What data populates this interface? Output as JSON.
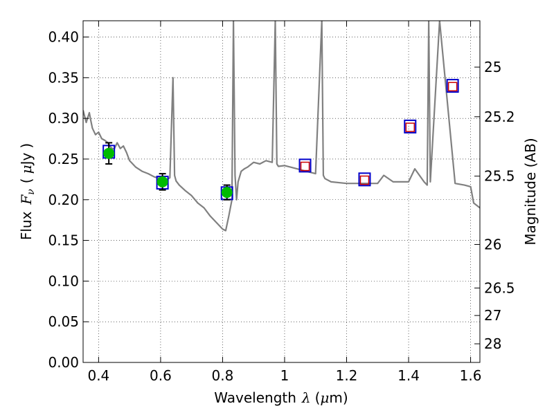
{
  "chart_data": {
    "type": "scatter",
    "title": "",
    "xlabel": "Wavelength",
    "xlabel_symbol": "λ",
    "xlabel_unit_open": "(",
    "xlabel_unit_mu": "μ",
    "xlabel_unit_rest": "m)",
    "ylabel": "Flux",
    "ylabel_symbol": "F",
    "ylabel_subscript": "ν",
    "ylabel_unit_open": "(",
    "ylabel_unit_mu": "μ",
    "ylabel_unit_rest": "Jy",
    "ylabel_unit_close": ")",
    "y2label": "Magnitude (AB)",
    "xlim": [
      0.35,
      1.63
    ],
    "ylim": [
      0.0,
      0.42
    ],
    "grid": true,
    "grid_style": "dotted",
    "xticks": [
      {
        "value": 0.4,
        "label": "0.4"
      },
      {
        "value": 0.6,
        "label": "0.6"
      },
      {
        "value": 0.8,
        "label": "0.8"
      },
      {
        "value": 1.0,
        "label": "1"
      },
      {
        "value": 1.2,
        "label": "1.2"
      },
      {
        "value": 1.4,
        "label": "1.4"
      },
      {
        "value": 1.6,
        "label": "1.6"
      }
    ],
    "yticks": [
      {
        "value": 0.0,
        "label": "0.00"
      },
      {
        "value": 0.05,
        "label": "0.05"
      },
      {
        "value": 0.1,
        "label": "0.10"
      },
      {
        "value": 0.15,
        "label": "0.15"
      },
      {
        "value": 0.2,
        "label": "0.20"
      },
      {
        "value": 0.25,
        "label": "0.25"
      },
      {
        "value": 0.3,
        "label": "0.30"
      },
      {
        "value": 0.35,
        "label": "0.35"
      },
      {
        "value": 0.4,
        "label": "0.40"
      }
    ],
    "mag_ticks": [
      {
        "flux": 0.363,
        "label": "25"
      },
      {
        "flux": 0.302,
        "label": "25.2"
      },
      {
        "flux": 0.229,
        "label": "25.5"
      },
      {
        "flux": 0.145,
        "label": "26"
      },
      {
        "flux": 0.0915,
        "label": "26.5"
      },
      {
        "flux": 0.0577,
        "label": "27"
      },
      {
        "flux": 0.0229,
        "label": "28"
      }
    ],
    "colors": {
      "model": "#808080",
      "observed": "#00bb00",
      "errorbar": "#000000",
      "model_box": "#0000cc",
      "upper_box": "#cc0000"
    },
    "series": [
      {
        "kind": "model_spectrum",
        "x": [
          0.35,
          0.36,
          0.37,
          0.375,
          0.38,
          0.39,
          0.4,
          0.41,
          0.42,
          0.43,
          0.44,
          0.45,
          0.46,
          0.47,
          0.48,
          0.49,
          0.5,
          0.52,
          0.54,
          0.56,
          0.58,
          0.6,
          0.62,
          0.63,
          0.64,
          0.645,
          0.65,
          0.66,
          0.68,
          0.7,
          0.72,
          0.74,
          0.76,
          0.78,
          0.8,
          0.81,
          0.82,
          0.83,
          0.835,
          0.84,
          0.845,
          0.85,
          0.86,
          0.87,
          0.88,
          0.9,
          0.92,
          0.94,
          0.96,
          0.97,
          0.975,
          0.98,
          1.0,
          1.02,
          1.04,
          1.06,
          1.08,
          1.1,
          1.12,
          1.125,
          1.13,
          1.15,
          1.2,
          1.25,
          1.3,
          1.32,
          1.35,
          1.4,
          1.42,
          1.45,
          1.46,
          1.465,
          1.47,
          1.5,
          1.55,
          1.58,
          1.6,
          1.61,
          1.63
        ],
        "y": [
          0.31,
          0.295,
          0.307,
          0.297,
          0.288,
          0.28,
          0.283,
          0.275,
          0.273,
          0.27,
          0.264,
          0.262,
          0.27,
          0.263,
          0.266,
          0.258,
          0.248,
          0.24,
          0.235,
          0.232,
          0.228,
          0.226,
          0.225,
          0.227,
          0.35,
          0.23,
          0.223,
          0.218,
          0.211,
          0.205,
          0.196,
          0.19,
          0.18,
          0.172,
          0.164,
          0.162,
          0.18,
          0.2,
          0.42,
          0.23,
          0.2,
          0.222,
          0.235,
          0.238,
          0.24,
          0.246,
          0.244,
          0.248,
          0.246,
          0.42,
          0.244,
          0.241,
          0.242,
          0.24,
          0.238,
          0.236,
          0.234,
          0.232,
          0.42,
          0.23,
          0.226,
          0.222,
          0.22,
          0.22,
          0.22,
          0.23,
          0.222,
          0.222,
          0.238,
          0.222,
          0.218,
          0.42,
          0.222,
          0.42,
          0.22,
          0.218,
          0.216,
          0.196,
          0.19
        ],
        "values_note": ""
      },
      {
        "kind": "observed",
        "points": [
          {
            "x": 0.433,
            "y": 0.257,
            "err": 0.013
          },
          {
            "x": 0.606,
            "y": 0.222,
            "err": 0.01
          },
          {
            "x": 0.814,
            "y": 0.209,
            "err": 0.009
          }
        ]
      },
      {
        "kind": "model_photometry",
        "points": [
          {
            "x": 0.433,
            "y": 0.259
          },
          {
            "x": 0.606,
            "y": 0.221
          },
          {
            "x": 0.814,
            "y": 0.208
          },
          {
            "x": 1.066,
            "y": 0.242
          },
          {
            "x": 1.258,
            "y": 0.225
          },
          {
            "x": 1.405,
            "y": 0.29
          },
          {
            "x": 1.542,
            "y": 0.34
          }
        ]
      },
      {
        "kind": "upper_photometry",
        "points": [
          {
            "x": 1.066,
            "y": 0.241
          },
          {
            "x": 1.258,
            "y": 0.224
          },
          {
            "x": 1.405,
            "y": 0.289
          },
          {
            "x": 1.542,
            "y": 0.339
          }
        ]
      }
    ]
  }
}
